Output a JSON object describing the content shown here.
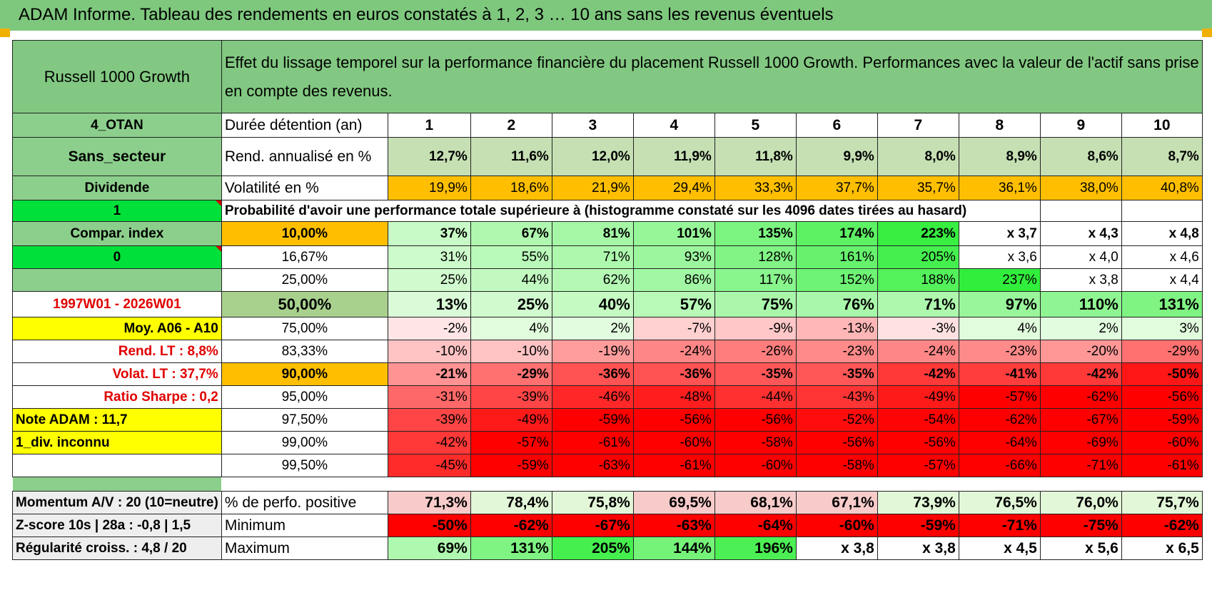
{
  "title": "ADAM Informe. Tableau des rendements en euros constatés à 1, 2, 3 … 10 ans sans les revenus éventuels",
  "header": {
    "fund_name": "Russell 1000 Growth",
    "description": "Effet du lissage temporel sur la performance financière du placement Russell 1000 Growth. Performances avec la valeur de l'actif sans prise en compte des revenus."
  },
  "durations": [
    "1",
    "2",
    "3",
    "4",
    "5",
    "6",
    "7",
    "8",
    "9",
    "10"
  ],
  "side": {
    "s1": "4_OTAN",
    "s2": "Sans_secteur",
    "s3": "Dividende",
    "s4": "1",
    "s5": "Compar. index",
    "s6": "0",
    "s7": "",
    "s8": "1997W01 - 2026W01",
    "s9": "Moy. A06 - A10",
    "s10": "Rend. LT :    8,8%",
    "s11": "Volat. LT :    37,7%",
    "s12": "Ratio Sharpe :    0,2",
    "s13": "Note ADAM : 11,7",
    "s14": "1_div. inconnu",
    "s15": "",
    "b1": "Momentum A/V : 20 (10=neutre)",
    "b2": "Z-score 10s | 28a : -0,8 | 1,5",
    "b3": "Régularité croiss. : 4,8 / 20"
  },
  "labels": {
    "duration": "Durée détention (an)",
    "rendement": "Rend. annualisé en %",
    "volatility": "Volatilité en %",
    "probability": "Probabilité d'avoir une performance totale supérieure à (histogramme constaté sur les 4096 dates tirées au hasard)",
    "positive": "% de perfo. positive",
    "minimum": "Minimum",
    "maximum": "Maximum"
  },
  "rendement": [
    "12,7%",
    "11,6%",
    "12,0%",
    "11,9%",
    "11,8%",
    "9,9%",
    "8,0%",
    "8,9%",
    "8,6%",
    "8,7%"
  ],
  "volatility": [
    "19,9%",
    "18,6%",
    "21,9%",
    "29,4%",
    "33,3%",
    "37,7%",
    "35,7%",
    "36,1%",
    "38,0%",
    "40,8%"
  ],
  "prob_rows": [
    {
      "threshold": "10,00%",
      "values": [
        "37%",
        "67%",
        "81%",
        "101%",
        "135%",
        "174%",
        "223%",
        "x 3,7",
        "x 4,3",
        "x 4,8"
      ]
    },
    {
      "threshold": "16,67%",
      "values": [
        "31%",
        "55%",
        "71%",
        "93%",
        "128%",
        "161%",
        "205%",
        "x 3,6",
        "x 4,0",
        "x 4,6"
      ]
    },
    {
      "threshold": "25,00%",
      "values": [
        "25%",
        "44%",
        "62%",
        "86%",
        "117%",
        "152%",
        "188%",
        "237%",
        "x 3,8",
        "x 4,4"
      ]
    },
    {
      "threshold": "50,00%",
      "values": [
        "13%",
        "25%",
        "40%",
        "57%",
        "75%",
        "76%",
        "71%",
        "97%",
        "110%",
        "131%"
      ]
    },
    {
      "threshold": "75,00%",
      "values": [
        "-2%",
        "4%",
        "2%",
        "-7%",
        "-9%",
        "-13%",
        "-3%",
        "4%",
        "2%",
        "3%"
      ]
    },
    {
      "threshold": "83,33%",
      "values": [
        "-10%",
        "-10%",
        "-19%",
        "-24%",
        "-26%",
        "-23%",
        "-24%",
        "-23%",
        "-20%",
        "-29%"
      ]
    },
    {
      "threshold": "90,00%",
      "values": [
        "-21%",
        "-29%",
        "-36%",
        "-36%",
        "-35%",
        "-35%",
        "-42%",
        "-41%",
        "-42%",
        "-50%"
      ]
    },
    {
      "threshold": "95,00%",
      "values": [
        "-31%",
        "-39%",
        "-46%",
        "-48%",
        "-44%",
        "-43%",
        "-49%",
        "-57%",
        "-62%",
        "-56%"
      ]
    },
    {
      "threshold": "97,50%",
      "values": [
        "-39%",
        "-49%",
        "-59%",
        "-56%",
        "-56%",
        "-52%",
        "-54%",
        "-62%",
        "-67%",
        "-59%"
      ]
    },
    {
      "threshold": "99,00%",
      "values": [
        "-42%",
        "-57%",
        "-61%",
        "-60%",
        "-58%",
        "-56%",
        "-56%",
        "-64%",
        "-69%",
        "-60%"
      ]
    },
    {
      "threshold": "99,50%",
      "values": [
        "-45%",
        "-59%",
        "-63%",
        "-61%",
        "-60%",
        "-58%",
        "-57%",
        "-66%",
        "-71%",
        "-61%"
      ]
    }
  ],
  "positive": [
    "71,3%",
    "78,4%",
    "75,8%",
    "69,5%",
    "68,1%",
    "67,1%",
    "73,9%",
    "76,5%",
    "76,0%",
    "75,7%"
  ],
  "minimum": [
    "-50%",
    "-62%",
    "-67%",
    "-63%",
    "-64%",
    "-60%",
    "-59%",
    "-71%",
    "-75%",
    "-62%"
  ],
  "maximum": [
    "69%",
    "131%",
    "205%",
    "144%",
    "196%",
    "x 3,8",
    "x 3,8",
    "x 4,5",
    "x 5,6",
    "x 6,5"
  ],
  "colors": {
    "banner": "#7ec87e",
    "header_green": "#82c882",
    "side_green": "#8ccf8c",
    "bright_green": "#00e03a",
    "orange": "#ffbf00",
    "yellow": "#ffff00",
    "label_red": "#e00000"
  }
}
